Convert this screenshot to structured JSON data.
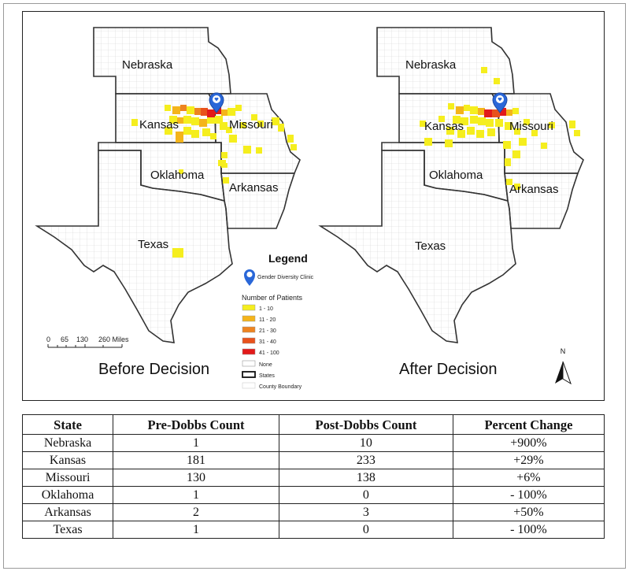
{
  "maps": [
    {
      "caption": "Before Decision"
    },
    {
      "caption": "After Decision"
    }
  ],
  "state_labels": {
    "nebraska": "Nebraska",
    "kansas": "Kansas",
    "missouri": "Missouri",
    "oklahoma": "Oklahoma",
    "arkansas": "Arkansas",
    "texas": "Texas"
  },
  "scale_bar": {
    "ticks": [
      "0",
      "65",
      "130",
      "260 Miles"
    ]
  },
  "north_arrow": {
    "label": "N"
  },
  "legend": {
    "title": "Legend",
    "clinic_label": "Gender Diversity Clinic",
    "patients_heading": "Number of Patients",
    "bins": [
      {
        "label": "1 - 10",
        "color": "#f5ee1e"
      },
      {
        "label": "11 - 20",
        "color": "#f4b41a"
      },
      {
        "label": "21 - 30",
        "color": "#ee8420"
      },
      {
        "label": "31 - 40",
        "color": "#e8521c"
      },
      {
        "label": "41 - 100",
        "color": "#e21a1a"
      }
    ],
    "none_label": "None",
    "states_label": "States",
    "county_label": "County Boundary"
  },
  "table": {
    "headers": [
      "State",
      "Pre-Dobbs Count",
      "Post-Dobbs Count",
      "Percent Change"
    ],
    "rows": [
      [
        "Nebraska",
        "1",
        "10",
        "+900%"
      ],
      [
        "Kansas",
        "181",
        "233",
        "+29%"
      ],
      [
        "Missouri",
        "130",
        "138",
        "+6%"
      ],
      [
        "Oklahoma",
        "1",
        "0",
        "- 100%"
      ],
      [
        "Arkansas",
        "2",
        "3",
        "+50%"
      ],
      [
        "Texas",
        "1",
        "0",
        "- 100%"
      ]
    ]
  },
  "colors": {
    "clinic_marker": "#2a67d8",
    "state_border": "#333333",
    "county_line": "#cfcfcf"
  }
}
